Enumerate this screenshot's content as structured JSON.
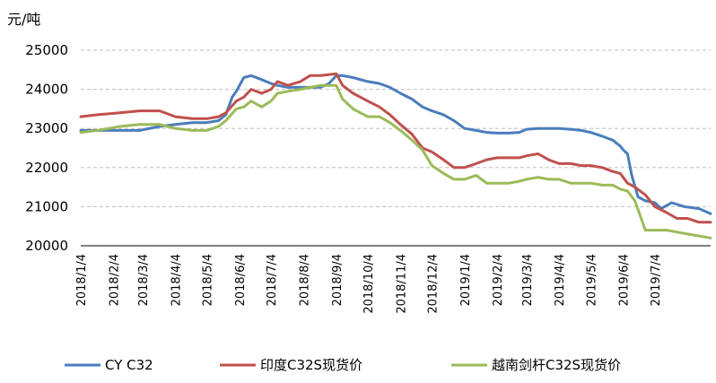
{
  "chart_data": {
    "type": "line",
    "unit_label": "元/吨",
    "ylim": [
      20000,
      25000
    ],
    "y_ticks": [
      20000,
      21000,
      22000,
      23000,
      24000,
      25000
    ],
    "y_tick_labels": [
      "20000",
      "21000",
      "22000",
      "23000",
      "24000",
      "25000"
    ],
    "x_range": [
      "2018-01-04",
      "2019-08-26"
    ],
    "x_tick_labels": [
      "2018/1/4",
      "2018/2/4",
      "2018/3/4",
      "2018/4/4",
      "2018/5/4",
      "2018/6/4",
      "2018/7/4",
      "2018/8/4",
      "2018/9/4",
      "2018/10/4",
      "2018/11/4",
      "2018/12/4",
      "2019/1/4",
      "2019/2/4",
      "2019/3/4",
      "2019/4/4",
      "2019/5/4",
      "2019/6/4",
      "2019/7/4"
    ],
    "x_tick_dates": [
      "2018-01-04",
      "2018-02-04",
      "2018-03-04",
      "2018-04-04",
      "2018-05-04",
      "2018-06-04",
      "2018-07-04",
      "2018-08-04",
      "2018-09-04",
      "2018-10-04",
      "2018-11-04",
      "2018-12-04",
      "2019-01-04",
      "2019-02-04",
      "2019-03-04",
      "2019-04-04",
      "2019-05-04",
      "2019-06-04",
      "2019-07-04"
    ],
    "grid": "horizontal",
    "legend_position": "bottom",
    "series": [
      {
        "name": "CY C32",
        "color": "#4a7ebb",
        "x": [
          "2018-01-04",
          "2018-01-20",
          "2018-02-10",
          "2018-03-01",
          "2018-03-20",
          "2018-04-04",
          "2018-04-20",
          "2018-05-04",
          "2018-05-15",
          "2018-05-22",
          "2018-05-28",
          "2018-06-01",
          "2018-06-08",
          "2018-06-15",
          "2018-06-25",
          "2018-07-04",
          "2018-07-10",
          "2018-07-20",
          "2018-08-01",
          "2018-08-10",
          "2018-08-20",
          "2018-08-28",
          "2018-09-04",
          "2018-09-10",
          "2018-09-20",
          "2018-10-04",
          "2018-10-15",
          "2018-10-25",
          "2018-11-04",
          "2018-11-15",
          "2018-11-25",
          "2018-12-04",
          "2018-12-15",
          "2018-12-25",
          "2019-01-04",
          "2019-01-15",
          "2019-01-25",
          "2019-02-04",
          "2019-02-15",
          "2019-02-25",
          "2019-03-04",
          "2019-03-15",
          "2019-03-25",
          "2019-04-04",
          "2019-04-15",
          "2019-04-25",
          "2019-05-04",
          "2019-05-15",
          "2019-05-20",
          "2019-05-25",
          "2019-06-01",
          "2019-06-04",
          "2019-06-08",
          "2019-06-12",
          "2019-06-18",
          "2019-06-25",
          "2019-07-04",
          "2019-07-10",
          "2019-07-20",
          "2019-08-01",
          "2019-08-15",
          "2019-08-26"
        ],
        "values": [
          22950,
          22950,
          22950,
          22950,
          23050,
          23100,
          23150,
          23150,
          23200,
          23350,
          23800,
          23950,
          24300,
          24350,
          24250,
          24150,
          24100,
          24050,
          24050,
          24050,
          24050,
          24150,
          24350,
          24350,
          24300,
          24200,
          24150,
          24050,
          23900,
          23750,
          23550,
          23450,
          23350,
          23200,
          23000,
          22950,
          22900,
          22880,
          22880,
          22900,
          22980,
          23000,
          23000,
          23000,
          22980,
          22950,
          22900,
          22800,
          22750,
          22700,
          22550,
          22450,
          22350,
          21800,
          21250,
          21150,
          21100,
          20950,
          21100,
          21000,
          20950,
          20820
        ]
      },
      {
        "name": "印度C32S现货价",
        "color": "#c0504d",
        "x": [
          "2018-01-04",
          "2018-01-20",
          "2018-02-10",
          "2018-03-01",
          "2018-03-20",
          "2018-04-04",
          "2018-04-20",
          "2018-05-04",
          "2018-05-15",
          "2018-05-22",
          "2018-06-01",
          "2018-06-08",
          "2018-06-15",
          "2018-06-25",
          "2018-07-04",
          "2018-07-10",
          "2018-07-20",
          "2018-08-01",
          "2018-08-10",
          "2018-08-20",
          "2018-09-04",
          "2018-09-10",
          "2018-09-20",
          "2018-10-04",
          "2018-10-15",
          "2018-10-25",
          "2018-11-04",
          "2018-11-15",
          "2018-11-25",
          "2018-12-04",
          "2018-12-15",
          "2018-12-25",
          "2019-01-04",
          "2019-01-15",
          "2019-01-25",
          "2019-02-04",
          "2019-02-15",
          "2019-02-25",
          "2019-03-04",
          "2019-03-15",
          "2019-03-25",
          "2019-04-04",
          "2019-04-15",
          "2019-04-25",
          "2019-05-04",
          "2019-05-15",
          "2019-05-25",
          "2019-06-01",
          "2019-06-08",
          "2019-06-15",
          "2019-06-25",
          "2019-07-04",
          "2019-07-15",
          "2019-07-25",
          "2019-08-04",
          "2019-08-15",
          "2019-08-26"
        ],
        "values": [
          23300,
          23350,
          23400,
          23450,
          23450,
          23300,
          23250,
          23250,
          23300,
          23400,
          23700,
          23800,
          24000,
          23900,
          24000,
          24200,
          24100,
          24200,
          24350,
          24350,
          24400,
          24100,
          23900,
          23700,
          23550,
          23350,
          23100,
          22850,
          22500,
          22400,
          22200,
          22000,
          22000,
          22100,
          22200,
          22250,
          22250,
          22250,
          22300,
          22350,
          22200,
          22100,
          22100,
          22050,
          22050,
          22000,
          21900,
          21850,
          21600,
          21500,
          21300,
          21000,
          20850,
          20700,
          20700,
          20600,
          20600
        ]
      },
      {
        "name": "越南剑杆C32S现货价",
        "color": "#9bbb59",
        "x": [
          "2018-01-04",
          "2018-01-20",
          "2018-02-10",
          "2018-03-01",
          "2018-03-20",
          "2018-04-04",
          "2018-04-20",
          "2018-05-04",
          "2018-05-15",
          "2018-05-22",
          "2018-06-01",
          "2018-06-08",
          "2018-06-15",
          "2018-06-25",
          "2018-07-04",
          "2018-07-10",
          "2018-07-20",
          "2018-08-01",
          "2018-08-10",
          "2018-08-20",
          "2018-09-04",
          "2018-09-10",
          "2018-09-20",
          "2018-10-04",
          "2018-10-15",
          "2018-10-25",
          "2018-11-04",
          "2018-11-15",
          "2018-11-25",
          "2018-12-04",
          "2018-12-15",
          "2018-12-25",
          "2019-01-04",
          "2019-01-15",
          "2019-01-25",
          "2019-02-04",
          "2019-02-15",
          "2019-02-25",
          "2019-03-04",
          "2019-03-15",
          "2019-03-25",
          "2019-04-04",
          "2019-04-15",
          "2019-04-25",
          "2019-05-04",
          "2019-05-15",
          "2019-05-25",
          "2019-06-01",
          "2019-06-08",
          "2019-06-15",
          "2019-06-25",
          "2019-07-04",
          "2019-07-15",
          "2019-07-25",
          "2019-08-04",
          "2019-08-15",
          "2019-08-26"
        ],
        "values": [
          22900,
          22950,
          23050,
          23100,
          23100,
          23000,
          22950,
          22950,
          23050,
          23200,
          23500,
          23550,
          23700,
          23550,
          23700,
          23900,
          23950,
          24000,
          24050,
          24100,
          24100,
          23750,
          23500,
          23300,
          23300,
          23150,
          22950,
          22700,
          22450,
          22050,
          21850,
          21700,
          21700,
          21800,
          21600,
          21600,
          21600,
          21650,
          21700,
          21750,
          21700,
          21700,
          21600,
          21600,
          21600,
          21550,
          21550,
          21450,
          21400,
          21150,
          20400,
          20400,
          20400,
          20350,
          20300,
          20250,
          20200
        ]
      }
    ]
  }
}
